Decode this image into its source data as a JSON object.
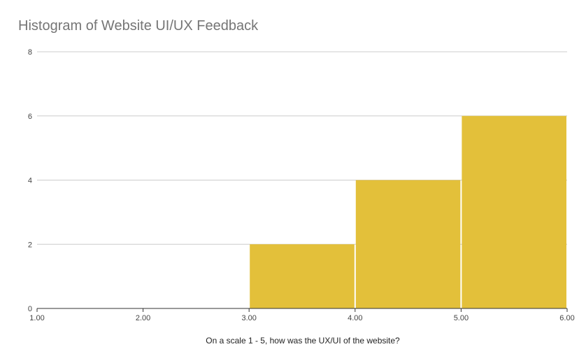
{
  "chart_data": {
    "type": "bar",
    "title": "Histogram of Website UI/UX Feedback",
    "xlabel": "On a scale 1 - 5, how was the UX/UI of the website?",
    "ylabel": "",
    "xlim": [
      1,
      6
    ],
    "ylim": [
      0,
      8
    ],
    "x_ticks": [
      "1.00",
      "2.00",
      "3.00",
      "4.00",
      "5.00",
      "6.00"
    ],
    "y_ticks": [
      "0",
      "2",
      "4",
      "6",
      "8"
    ],
    "bins": [
      {
        "start": 1,
        "end": 2,
        "count": 0
      },
      {
        "start": 2,
        "end": 3,
        "count": 0
      },
      {
        "start": 3,
        "end": 4,
        "count": 2
      },
      {
        "start": 4,
        "end": 5,
        "count": 4
      },
      {
        "start": 5,
        "end": 6,
        "count": 6
      }
    ],
    "bar_color": "#e3c03a",
    "grid": true,
    "legend": "none"
  }
}
